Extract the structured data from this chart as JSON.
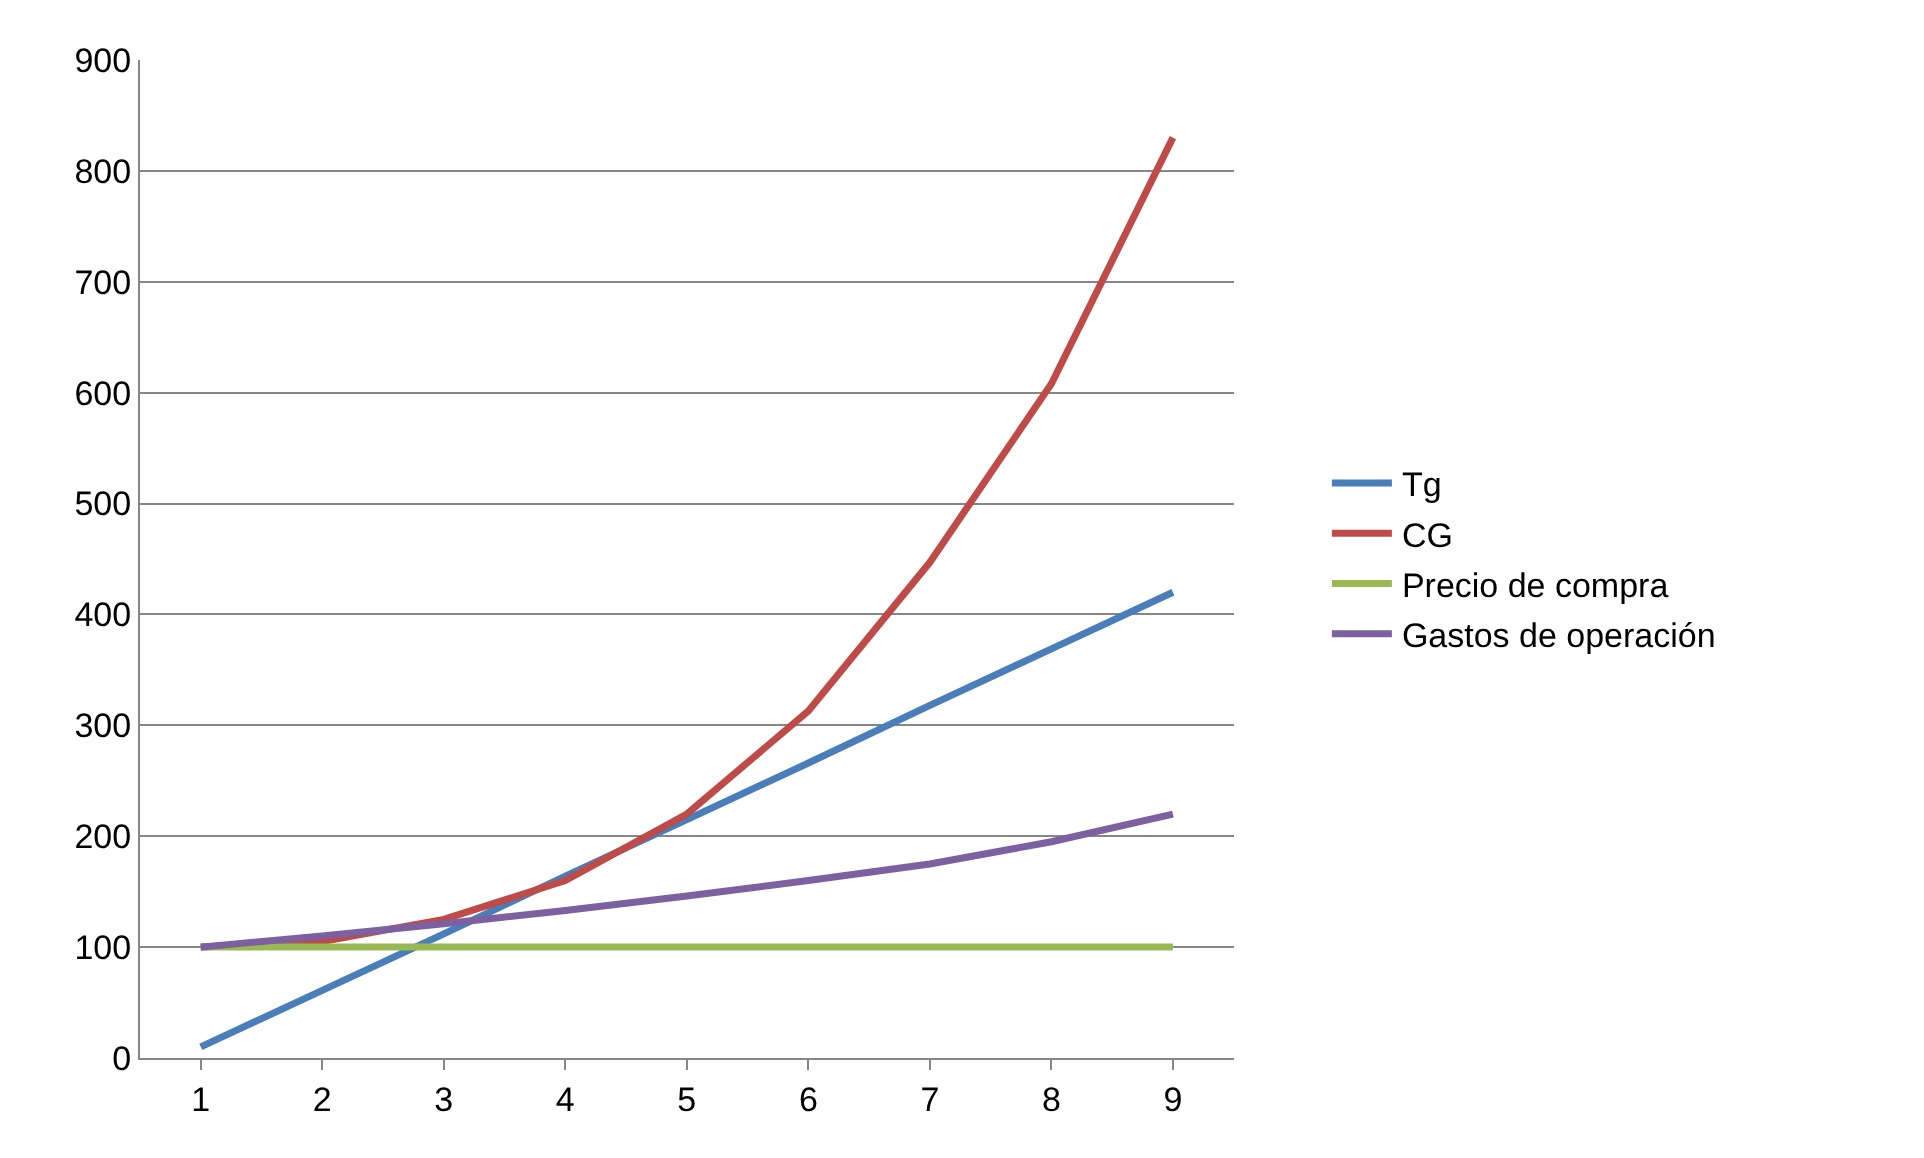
{
  "chart_data": {
    "type": "line",
    "categories": [
      "1",
      "2",
      "3",
      "4",
      "5",
      "6",
      "7",
      "8",
      "9"
    ],
    "series": [
      {
        "name": "Tg",
        "color": "#4a7ebb",
        "values": [
          10,
          61,
          112,
          164,
          215,
          266,
          318,
          369,
          420
        ]
      },
      {
        "name": "CG",
        "color": "#be4b48",
        "values": [
          100,
          105,
          125,
          160,
          220,
          313,
          447,
          608,
          830
        ]
      },
      {
        "name": "Precio de compra",
        "color": "#98b954",
        "values": [
          100,
          100,
          100,
          100,
          100,
          100,
          100,
          100,
          100
        ]
      },
      {
        "name": "Gastos de operación",
        "color": "#7d60a0",
        "values": [
          100,
          110,
          121,
          133,
          146,
          160,
          175,
          195,
          220
        ]
      }
    ],
    "ylim": [
      0,
      900
    ],
    "yticks": [
      0,
      100,
      200,
      300,
      400,
      500,
      600,
      700,
      800,
      900
    ],
    "grid": "y",
    "legend": "right",
    "marker": "none",
    "line_style": "solid"
  }
}
